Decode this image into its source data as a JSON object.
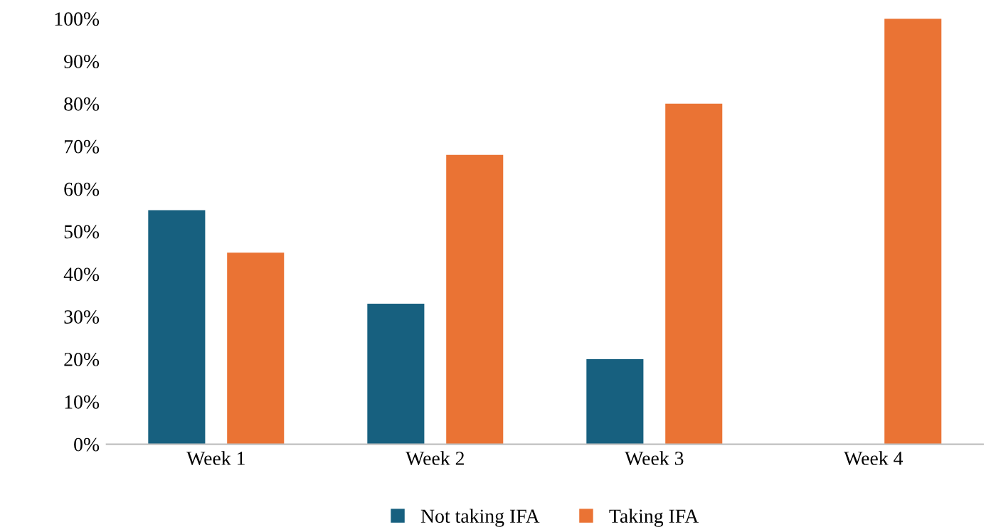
{
  "chart_data": {
    "type": "bar",
    "categories": [
      "Week 1",
      "Week 2",
      "Week 3",
      "Week 4"
    ],
    "series": [
      {
        "name": "Not taking IFA",
        "color": "#17607f",
        "values": [
          55,
          33,
          20,
          0
        ]
      },
      {
        "name": "Taking IFA",
        "color": "#ea7334",
        "values": [
          45,
          68,
          80,
          100
        ]
      }
    ],
    "ylim": [
      0,
      100
    ],
    "yticks": [
      {
        "value": 0,
        "label": "0%"
      },
      {
        "value": 10,
        "label": "10%"
      },
      {
        "value": 20,
        "label": "20%"
      },
      {
        "value": 30,
        "label": "30%"
      },
      {
        "value": 40,
        "label": "40%"
      },
      {
        "value": 50,
        "label": "50%"
      },
      {
        "value": 60,
        "label": "60%"
      },
      {
        "value": 70,
        "label": "70%"
      },
      {
        "value": 80,
        "label": "80%"
      },
      {
        "value": 90,
        "label": "90%"
      },
      {
        "value": 100,
        "label": "100%"
      }
    ],
    "legend": "bottom",
    "grid": false
  }
}
